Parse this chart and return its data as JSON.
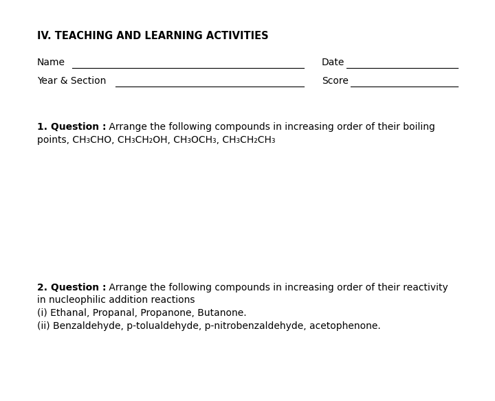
{
  "bg_color": "#ffffff",
  "title": "IV. TEACHING AND LEARNING ACTIVITIES",
  "title_fontsize": 10.5,
  "label_fontsize": 10,
  "q_fontsize": 10,
  "line_color": "#000000",
  "text_color": "#000000",
  "name_label": "Name",
  "date_label": "Date",
  "yearsec_label": "Year & Section",
  "score_label": "Score",
  "q1_bold": "1. Question :",
  "q1_rest": " Arrange the following compounds in increasing order of their boiling",
  "q1_line2": "points, CH₃CHO, CH₃CH₂OH, CH₃OCH₃, CH₃CH₂CH₃",
  "q2_bold": "2. Question :",
  "q2_rest": " Arrange the following compounds in increasing order of their reactivity",
  "q2_line2": "in nucleophilic addition reactions",
  "q2_line3": "(i) Ethanal, Propanal, Propanone, Butanone.",
  "q2_line4": "(ii) Benzaldehyde, p-tolualdehyde, p-nitrobenzaldehyde, acetophenone."
}
